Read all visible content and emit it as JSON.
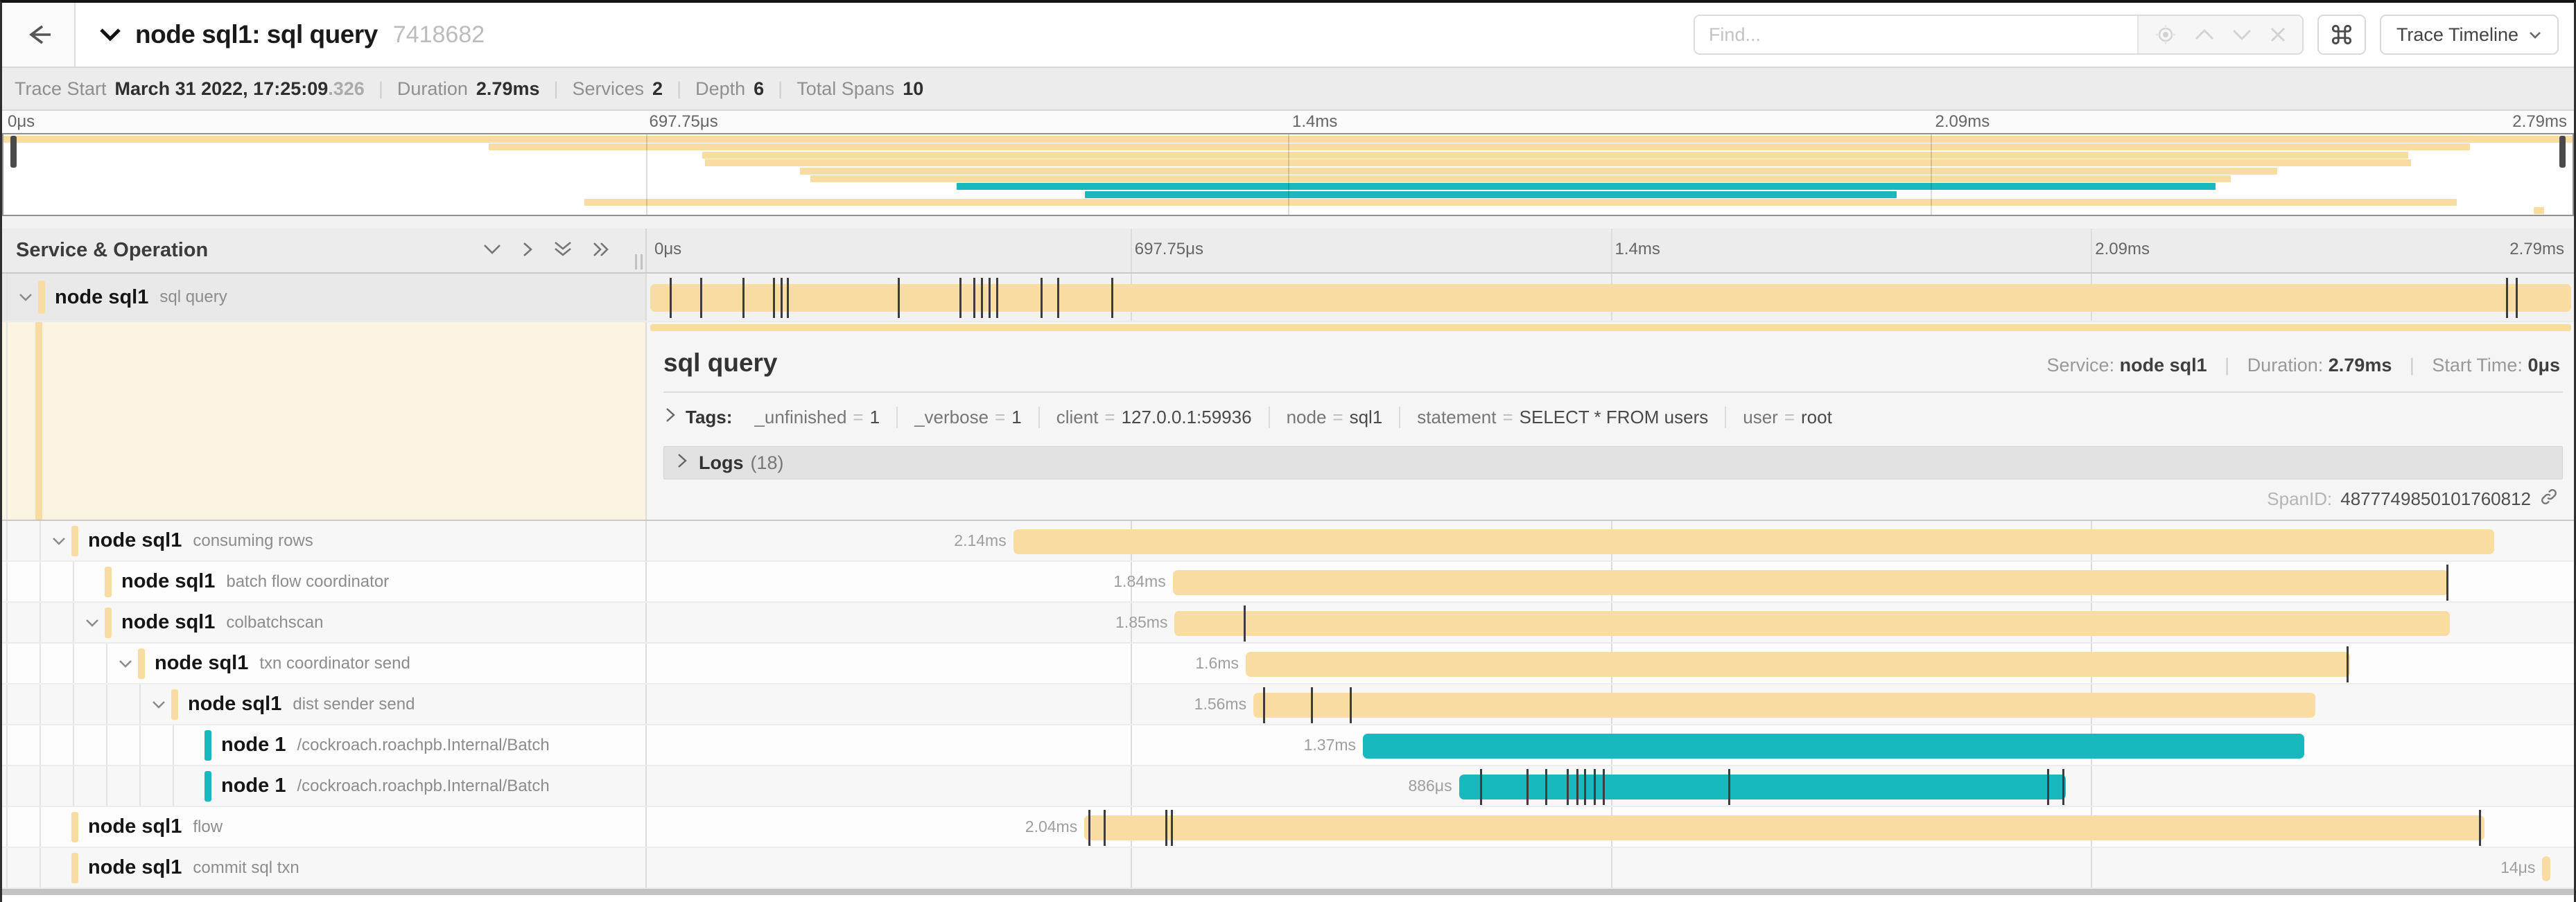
{
  "header": {
    "title": "node sql1: sql query",
    "trace_id": "7418682",
    "find_placeholder": "Find...",
    "view_button": "Trace Timeline",
    "icons": [
      "back-arrow-icon",
      "chevron-down-icon",
      "locate-icon",
      "chevron-up-icon",
      "chevron-down-icon",
      "close-icon",
      "command-icon"
    ]
  },
  "trace_info": {
    "items": [
      {
        "label": "Trace Start",
        "value": "March 31 2022, 17:25:09",
        "suffix": ".326"
      },
      {
        "label": "Duration",
        "value": "2.79ms"
      },
      {
        "label": "Services",
        "value": "2"
      },
      {
        "label": "Depth",
        "value": "6"
      },
      {
        "label": "Total Spans",
        "value": "10"
      }
    ]
  },
  "timeline": {
    "column_header": "Service & Operation",
    "ticks": [
      "0μs",
      "697.75μs",
      "1.4ms",
      "2.09ms",
      "2.79ms"
    ],
    "header_icons": [
      "collapse-one-icon",
      "expand-one-icon",
      "collapse-all-icon",
      "expand-all-icon"
    ]
  },
  "colors": {
    "tan": "#F8DCA1",
    "teal": "#17B8BE"
  },
  "spans": [
    {
      "service": "node sql1",
      "operation": "sql query",
      "depth": 0,
      "color": "tan",
      "expandable": true,
      "selected": true,
      "start": 0,
      "width": 100,
      "duration": "",
      "ticks": [
        1.0,
        2.6,
        4.8,
        6.4,
        6.8,
        7.1,
        12.9,
        16.1,
        16.8,
        17.2,
        17.6,
        18.0,
        20.3,
        21.2,
        24.0,
        96.6,
        97.1
      ]
    },
    {
      "service": "node sql1",
      "operation": "consuming rows",
      "depth": 1,
      "color": "tan",
      "expandable": true,
      "start": 18.9,
      "width": 77.1,
      "duration": "2.14ms",
      "ticks": []
    },
    {
      "service": "node sql1",
      "operation": "batch flow coordinator",
      "depth": 2,
      "color": "tan",
      "expandable": false,
      "start": 27.2,
      "width": 66.4,
      "duration": "1.84ms",
      "ticks": [
        93.5
      ]
    },
    {
      "service": "node sql1",
      "operation": "colbatchscan",
      "depth": 2,
      "color": "tan",
      "expandable": true,
      "start": 27.3,
      "width": 66.4,
      "duration": "1.85ms",
      "ticks": [
        30.9
      ]
    },
    {
      "service": "node sql1",
      "operation": "txn coordinator send",
      "depth": 3,
      "color": "tan",
      "expandable": true,
      "start": 31.0,
      "width": 57.5,
      "duration": "1.6ms",
      "ticks": [
        88.3
      ]
    },
    {
      "service": "node sql1",
      "operation": "dist sender send",
      "depth": 4,
      "color": "tan",
      "expandable": true,
      "start": 31.4,
      "width": 55.3,
      "duration": "1.56ms",
      "ticks": [
        31.9,
        34.4,
        36.4
      ]
    },
    {
      "service": "node 1",
      "operation": "/cockroach.roachpb.Internal/Batch",
      "depth": 5,
      "color": "teal",
      "expandable": false,
      "start": 37.1,
      "width": 49.0,
      "duration": "1.37ms",
      "ticks": []
    },
    {
      "service": "node 1",
      "operation": "/cockroach.roachpb.Internal/Batch",
      "depth": 5,
      "color": "teal",
      "expandable": false,
      "start": 42.1,
      "width": 31.6,
      "duration": "886μs",
      "ticks": [
        43.2,
        45.6,
        46.6,
        47.7,
        48.2,
        48.6,
        49.1,
        49.6,
        56.1,
        72.7,
        73.5
      ]
    },
    {
      "service": "node sql1",
      "operation": "flow",
      "depth": 1,
      "color": "tan",
      "expandable": false,
      "start": 22.6,
      "width": 72.9,
      "duration": "2.04ms",
      "ticks": [
        22.8,
        23.6,
        26.8,
        27.1,
        95.2
      ]
    },
    {
      "service": "node sql1",
      "operation": "commit sql txn",
      "depth": 1,
      "color": "tan",
      "expandable": false,
      "start": 98.5,
      "width": 0.4,
      "duration": "14μs",
      "ticks": []
    }
  ],
  "detail": {
    "title": "sql query",
    "service_label": "Service:",
    "service": "node sql1",
    "duration_label": "Duration:",
    "duration": "2.79ms",
    "start_label": "Start Time:",
    "start": "0μs",
    "tags_label": "Tags:",
    "tags": [
      {
        "key": "_unfinished",
        "value": "1"
      },
      {
        "key": "_verbose",
        "value": "1"
      },
      {
        "key": "client",
        "value": "127.0.0.1:59936"
      },
      {
        "key": "node",
        "value": "sql1"
      },
      {
        "key": "statement",
        "value": "SELECT * FROM users"
      },
      {
        "key": "user",
        "value": "root"
      }
    ],
    "logs_label": "Logs",
    "logs_count": "(18)",
    "spanid_label": "SpanID:",
    "spanid": "4877749850101760812"
  }
}
